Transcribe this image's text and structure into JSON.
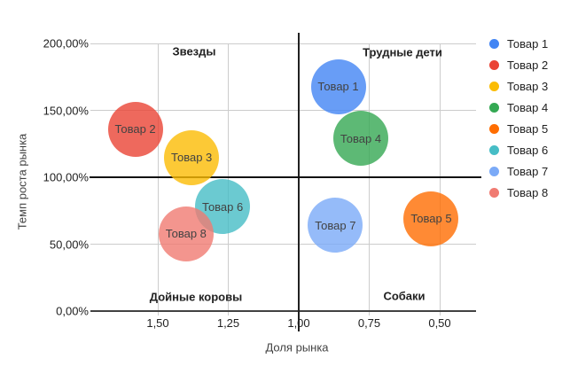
{
  "chart_data": {
    "type": "scatter",
    "subtype": "bubble-bcg-matrix",
    "title": "",
    "xlabel": "Доля рынка",
    "ylabel": "Темп роста рынка",
    "x_axis": {
      "tick_labels": [
        "1,50",
        "1,25",
        "1,00",
        "0,75",
        "0,50"
      ],
      "tick_values": [
        1.5,
        1.25,
        1.0,
        0.75,
        0.5
      ],
      "reversed": true,
      "range": [
        1.72,
        0.37
      ]
    },
    "y_axis": {
      "tick_labels": [
        "0,00%",
        "50,00%",
        "100,00%",
        "150,00%",
        "200,00%"
      ],
      "tick_values": [
        0,
        50,
        100,
        150,
        200
      ],
      "unit": "percent",
      "range": [
        0,
        207
      ]
    },
    "grid": true,
    "legend_position": "right",
    "quadrant_labels": {
      "top_left": "Звезды",
      "top_right": "Трудные дети",
      "bottom_left": "Дойные коровы",
      "bottom_right": "Собаки"
    },
    "threshold_lines": {
      "x": 1.0,
      "y": 100
    },
    "series": [
      {
        "name": "Товар 1",
        "x": 0.86,
        "y": 168,
        "color": "#4285F4"
      },
      {
        "name": "Товар 2",
        "x": 1.58,
        "y": 136,
        "color": "#EA4335"
      },
      {
        "name": "Товар 3",
        "x": 1.38,
        "y": 115,
        "color": "#FBBC04"
      },
      {
        "name": "Товар 4",
        "x": 0.78,
        "y": 129,
        "color": "#34A853"
      },
      {
        "name": "Товар 5",
        "x": 0.53,
        "y": 69,
        "color": "#FF6D01"
      },
      {
        "name": "Товар 6",
        "x": 1.27,
        "y": 78,
        "color": "#46BDC6"
      },
      {
        "name": "Товар 7",
        "x": 0.87,
        "y": 64,
        "color": "#7BAAF7"
      },
      {
        "name": "Товар 8",
        "x": 1.4,
        "y": 58,
        "color": "#F07B72"
      }
    ],
    "bubble_opacity": 0.8,
    "bubble_radius_px": 31
  }
}
